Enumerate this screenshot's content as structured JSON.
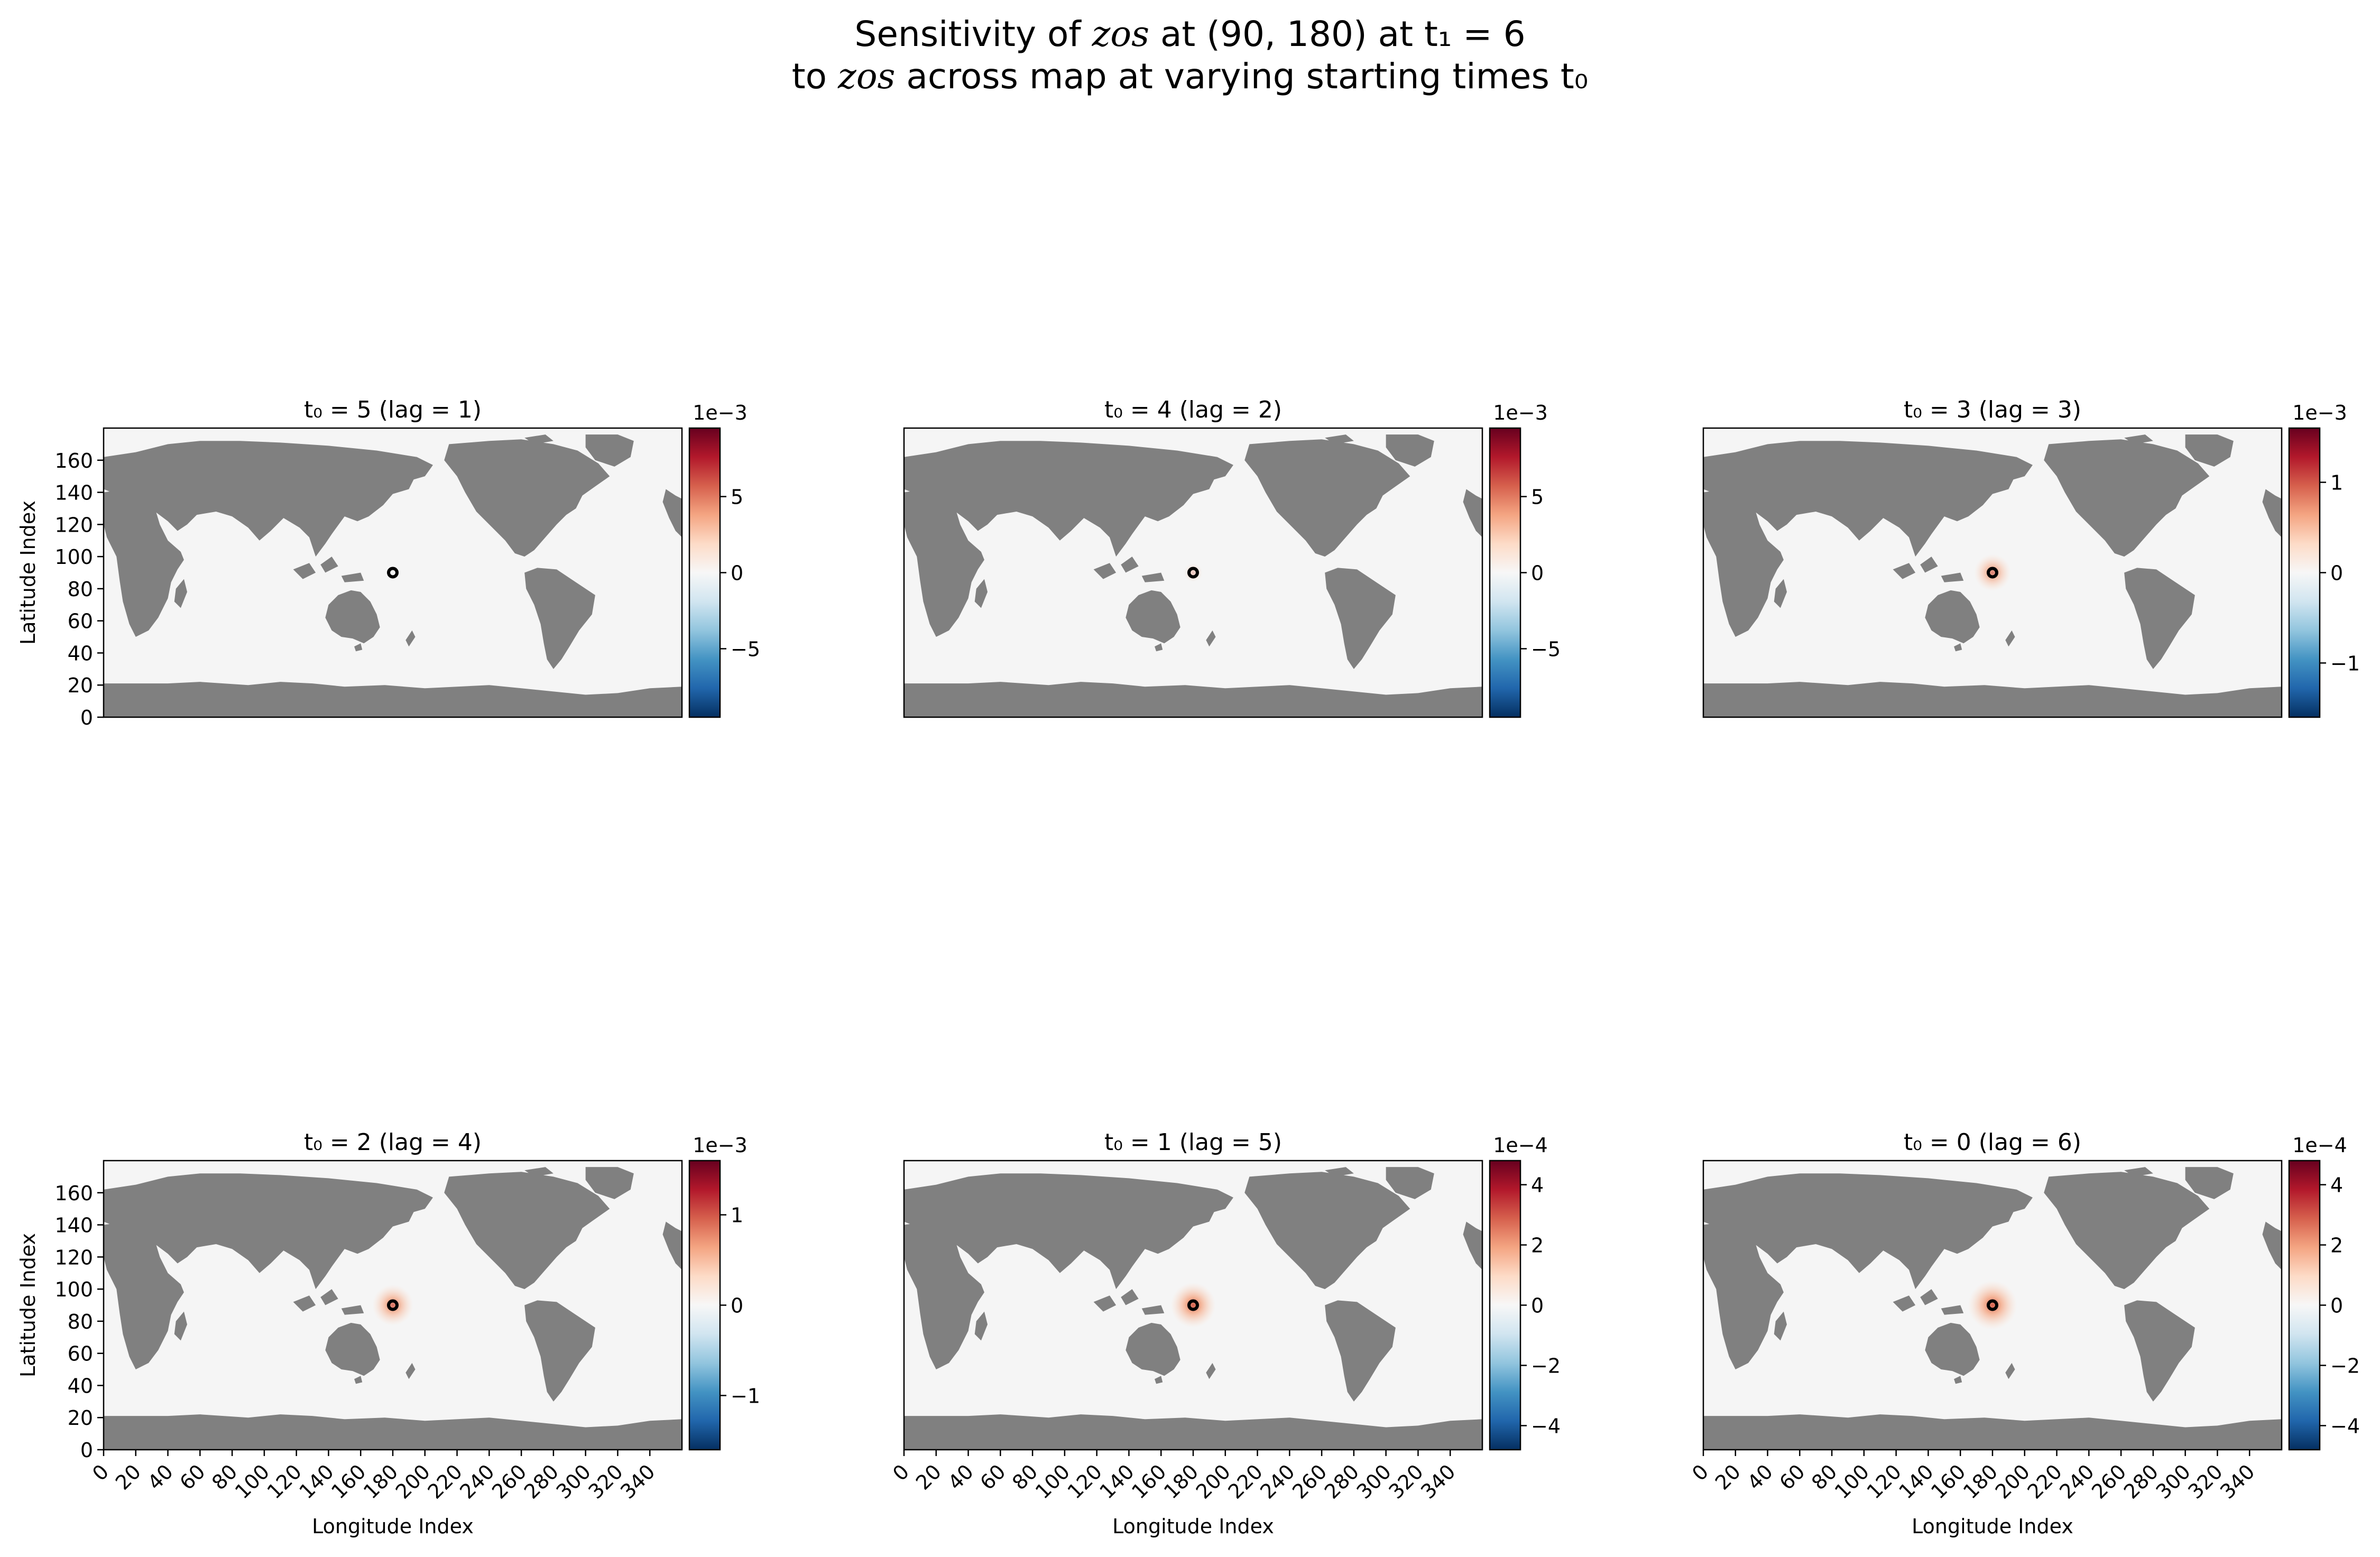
{
  "figure": {
    "title_line1": "Sensitivity of zos at (90, 180) at t₁ = 6",
    "title_line2": "to zos across map at varying starting times t₀",
    "ylabel": "Latitude Index",
    "xlabel": "Longitude Index"
  },
  "colors": {
    "land": "#808080",
    "ocean": "#f5f5f5",
    "cmap": [
      "#053061",
      "#2166ac",
      "#4393c3",
      "#92c5de",
      "#d1e5f0",
      "#f7f7f7",
      "#fddbc7",
      "#f4a582",
      "#d6604d",
      "#b2182b",
      "#67001f"
    ],
    "marker": "#000000"
  },
  "chart_data": [
    {
      "type": "heatmap",
      "title": "t₀ = 5 (lag = 1)",
      "t0": 5,
      "lag": 1,
      "xlim": [
        0,
        359
      ],
      "ylim": [
        0,
        179
      ],
      "colorbar": {
        "range": [
          -0.0095,
          0.0095
        ],
        "offset": "1e−3",
        "ticks": [
          -5,
          0,
          5
        ],
        "tick_values": [
          -0.005,
          0,
          0.005
        ]
      },
      "marker": {
        "lon": 180,
        "lat": 90
      },
      "hotspot_intensity": 0.0
    },
    {
      "type": "heatmap",
      "title": "t₀ = 4 (lag = 2)",
      "t0": 4,
      "lag": 2,
      "xlim": [
        0,
        359
      ],
      "ylim": [
        0,
        179
      ],
      "colorbar": {
        "range": [
          -0.0095,
          0.0095
        ],
        "offset": "1e−3",
        "ticks": [
          -5,
          0,
          5
        ],
        "tick_values": [
          -0.005,
          0,
          0.005
        ]
      },
      "marker": {
        "lon": 180,
        "lat": 90
      },
      "hotspot_intensity": 0.05
    },
    {
      "type": "heatmap",
      "title": "t₀ = 3 (lag = 3)",
      "t0": 3,
      "lag": 3,
      "xlim": [
        0,
        359
      ],
      "ylim": [
        0,
        179
      ],
      "colorbar": {
        "range": [
          -0.0016,
          0.0016
        ],
        "offset": "1e−3",
        "ticks": [
          -1,
          0,
          1
        ],
        "tick_values": [
          -0.001,
          0,
          0.001
        ]
      },
      "marker": {
        "lon": 180,
        "lat": 90
      },
      "hotspot_intensity": 0.5
    },
    {
      "type": "heatmap",
      "title": "t₀ = 2 (lag = 4)",
      "t0": 2,
      "lag": 4,
      "xlim": [
        0,
        359
      ],
      "ylim": [
        0,
        179
      ],
      "colorbar": {
        "range": [
          -0.0016,
          0.0016
        ],
        "offset": "1e−3",
        "ticks": [
          -1,
          0,
          1
        ],
        "tick_values": [
          -0.001,
          0,
          0.001
        ]
      },
      "marker": {
        "lon": 180,
        "lat": 90
      },
      "hotspot_intensity": 0.6
    },
    {
      "type": "heatmap",
      "title": "t₀ = 1 (lag = 5)",
      "t0": 1,
      "lag": 5,
      "xlim": [
        0,
        359
      ],
      "ylim": [
        0,
        179
      ],
      "colorbar": {
        "range": [
          -0.00048,
          0.00048
        ],
        "offset": "1e−4",
        "ticks": [
          -4,
          -2,
          0,
          2,
          4
        ],
        "tick_values": [
          -0.0004,
          -0.0002,
          0,
          0.0002,
          0.0004
        ]
      },
      "marker": {
        "lon": 180,
        "lat": 90
      },
      "hotspot_intensity": 0.7
    },
    {
      "type": "heatmap",
      "title": "t₀ = 0 (lag = 6)",
      "t0": 0,
      "lag": 6,
      "xlim": [
        0,
        359
      ],
      "ylim": [
        0,
        179
      ],
      "colorbar": {
        "range": [
          -0.00048,
          0.00048
        ],
        "offset": "1e−4",
        "ticks": [
          -4,
          -2,
          0,
          2,
          4
        ],
        "tick_values": [
          -0.0004,
          -0.0002,
          0,
          0.0002,
          0.0004
        ]
      },
      "marker": {
        "lon": 180,
        "lat": 90
      },
      "hotspot_intensity": 0.8
    }
  ],
  "axes": {
    "yticks": [
      0,
      20,
      40,
      60,
      80,
      100,
      120,
      140,
      160
    ],
    "xticks": [
      0,
      20,
      40,
      60,
      80,
      100,
      120,
      140,
      160,
      180,
      200,
      220,
      240,
      260,
      280,
      300,
      320,
      340
    ]
  }
}
